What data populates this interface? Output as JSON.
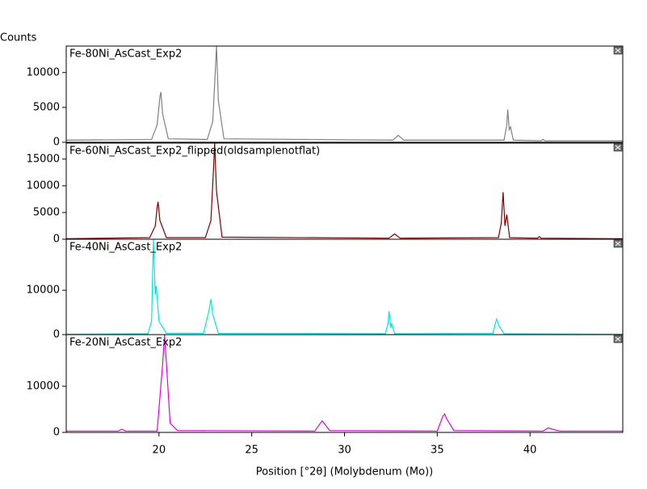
{
  "chart_data": [
    {
      "type": "line",
      "ylabel": "Counts",
      "xlim": [
        15,
        45
      ],
      "ylim": [
        0,
        13800
      ],
      "yticks": [
        0,
        5000,
        10000
      ],
      "x": [
        15,
        19.6,
        19.9,
        20.05,
        20.1,
        20.2,
        20.5,
        22.6,
        22.9,
        23.05,
        23.1,
        23.2,
        23.5,
        32.6,
        32.9,
        33.2,
        38.6,
        38.75,
        38.8,
        38.88,
        38.95,
        39.1,
        40.6,
        40.7,
        40.8,
        45
      ],
      "series": [
        {
          "name": "Fe-80Ni_AsCast_Exp2",
          "color": "#808080",
          "values": [
            300,
            400,
            2500,
            6500,
            7200,
            4000,
            500,
            400,
            3000,
            11000,
            13800,
            6000,
            500,
            300,
            1000,
            300,
            300,
            2500,
            4700,
            1800,
            2200,
            300,
            200,
            400,
            200,
            200
          ]
        }
      ]
    },
    {
      "type": "line",
      "xlim": [
        15,
        45
      ],
      "ylim": [
        0,
        18000
      ],
      "yticks": [
        0,
        5000,
        10000,
        15000
      ],
      "x": [
        15,
        19.5,
        19.8,
        19.9,
        19.95,
        20.05,
        20.4,
        22.5,
        22.8,
        22.95,
        23.0,
        23.1,
        23.4,
        32.4,
        32.7,
        33.0,
        38.3,
        38.45,
        38.55,
        38.65,
        38.75,
        38.9,
        40.4,
        40.5,
        40.6,
        45
      ],
      "series": [
        {
          "name": "Fe-60Ni_AsCast_Exp2_flipped(oldsamplenotflat)",
          "color": "#800000",
          "values": [
            100,
            300,
            2500,
            6000,
            7000,
            3500,
            300,
            300,
            3500,
            14000,
            18000,
            9000,
            400,
            200,
            1000,
            200,
            300,
            3000,
            8800,
            2500,
            4600,
            300,
            200,
            500,
            200,
            100
          ]
        }
      ]
    },
    {
      "type": "line",
      "xlim": [
        15,
        45
      ],
      "ylim": [
        0,
        21500
      ],
      "yticks": [
        0,
        10000
      ],
      "x": [
        15,
        19.4,
        19.6,
        19.7,
        19.8,
        19.85,
        20.0,
        20.4,
        22.4,
        22.7,
        22.8,
        22.9,
        23.2,
        32.2,
        32.35,
        32.4,
        32.5,
        32.55,
        32.7,
        38.0,
        38.15,
        38.2,
        38.35,
        38.6,
        45
      ],
      "series": [
        {
          "name": "Fe-40Ni_AsCast_Exp2",
          "color": "#00e5e5",
          "values": [
            100,
            200,
            3000,
            21500,
            9000,
            11000,
            3000,
            300,
            300,
            5500,
            8000,
            4500,
            300,
            200,
            2500,
            5300,
            1500,
            2600,
            200,
            300,
            2800,
            3500,
            1800,
            200,
            100
          ]
        }
      ]
    },
    {
      "type": "line",
      "xlabel": "Position [°2θ] (Molybdenum (Mo))",
      "xlim": [
        15,
        45
      ],
      "xticks": [
        20,
        25,
        30,
        35,
        40
      ],
      "ylim": [
        0,
        21200
      ],
      "yticks": [
        0,
        10000
      ],
      "x": [
        15,
        17.8,
        18,
        18.2,
        19.9,
        20.2,
        20.3,
        20.4,
        20.6,
        21,
        28.4,
        28.7,
        28.8,
        28.9,
        29.2,
        35.0,
        35.3,
        35.4,
        35.5,
        35.9,
        40.7,
        40.95,
        41.0,
        41.2,
        41.6,
        45
      ],
      "series": [
        {
          "name": "Fe-20Ni_AsCast_Exp2",
          "color": "#e500e5",
          "values": [
            300,
            300,
            700,
            300,
            300,
            15000,
            21200,
            15000,
            2000,
            400,
            300,
            2000,
            2500,
            2000,
            400,
            300,
            3500,
            4000,
            3000,
            400,
            300,
            900,
            1000,
            700,
            300,
            300
          ]
        }
      ]
    }
  ]
}
